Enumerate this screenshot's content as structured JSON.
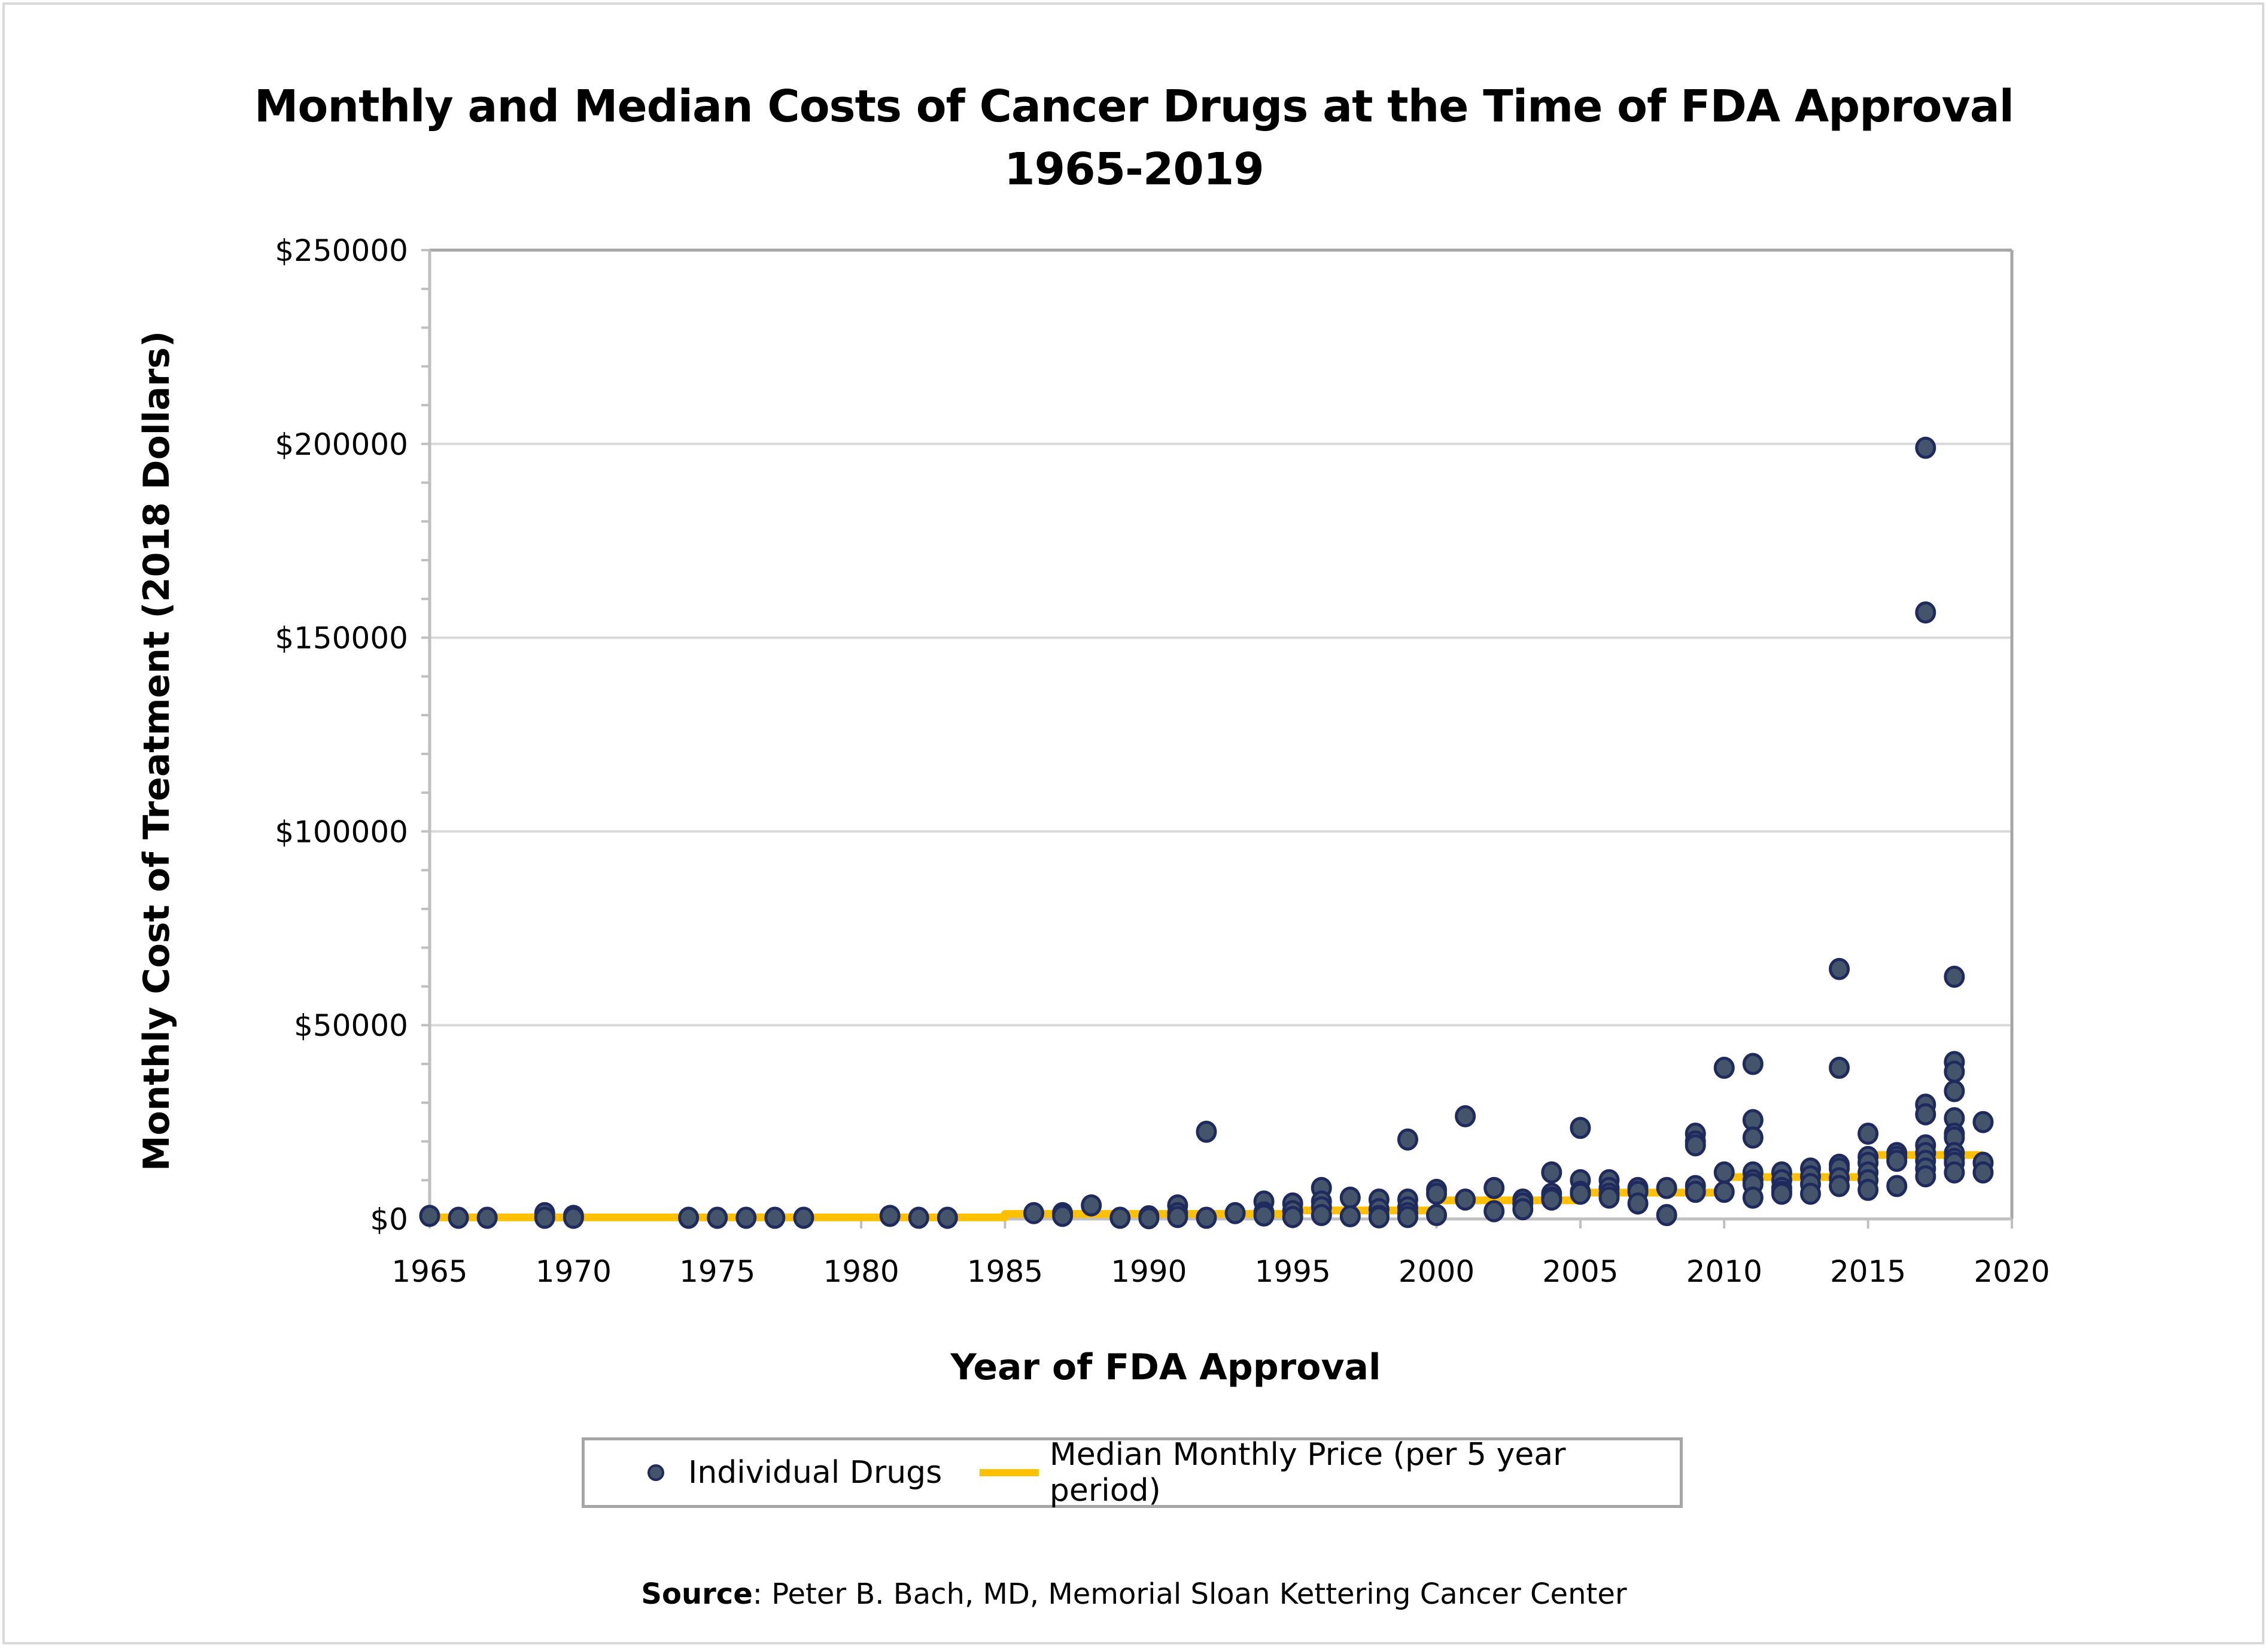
{
  "chart_data": {
    "type": "scatter",
    "title": "Monthly and Median Costs of Cancer Drugs at the Time of FDA Approval",
    "subtitle": "1965-2019",
    "xlabel": "Year of FDA Approval",
    "ylabel": "Monthly Cost of Treatment (2018 Dollars)",
    "xlim": [
      1965,
      2020
    ],
    "ylim": [
      0,
      250000
    ],
    "x_ticks": [
      "1965",
      "1970",
      "1975",
      "1980",
      "1985",
      "1990",
      "1995",
      "2000",
      "2005",
      "2010",
      "2015",
      "2020"
    ],
    "y_ticks": [
      "$0",
      "$50000",
      "$100000",
      "$150000",
      "$200000",
      "$250000"
    ],
    "y_tick_values": [
      0,
      50000,
      100000,
      150000,
      200000,
      250000
    ],
    "y_minor_step": 10000,
    "grid": true,
    "legend_position": "bottom",
    "colors": {
      "points_fill": "#44546a",
      "points_stroke": "#1f2a5e",
      "median": "#ffc000",
      "grid": "#d9d9d9",
      "axis": "#bfbfbf"
    },
    "series": [
      {
        "name": "Individual Drugs",
        "type": "scatter",
        "points": [
          [
            1965,
            800
          ],
          [
            1966,
            300
          ],
          [
            1967,
            300
          ],
          [
            1969,
            1500
          ],
          [
            1969,
            300
          ],
          [
            1970,
            800
          ],
          [
            1970,
            300
          ],
          [
            1974,
            300
          ],
          [
            1975,
            300
          ],
          [
            1976,
            300
          ],
          [
            1977,
            300
          ],
          [
            1978,
            300
          ],
          [
            1981,
            800
          ],
          [
            1982,
            300
          ],
          [
            1983,
            300
          ],
          [
            1986,
            1500
          ],
          [
            1987,
            1500
          ],
          [
            1987,
            800
          ],
          [
            1988,
            3500
          ],
          [
            1989,
            300
          ],
          [
            1990,
            700
          ],
          [
            1990,
            200
          ],
          [
            1991,
            3500
          ],
          [
            1991,
            1500
          ],
          [
            1991,
            500
          ],
          [
            1992,
            22500
          ],
          [
            1992,
            300
          ],
          [
            1993,
            1500
          ],
          [
            1994,
            4500
          ],
          [
            1994,
            1700
          ],
          [
            1994,
            900
          ],
          [
            1995,
            4000
          ],
          [
            1995,
            2000
          ],
          [
            1995,
            500
          ],
          [
            1996,
            8000
          ],
          [
            1996,
            4500
          ],
          [
            1996,
            3000
          ],
          [
            1996,
            1000
          ],
          [
            1997,
            5500
          ],
          [
            1997,
            700
          ],
          [
            1998,
            5000
          ],
          [
            1998,
            2500
          ],
          [
            1998,
            800
          ],
          [
            1998,
            400
          ],
          [
            1999,
            20500
          ],
          [
            1999,
            5000
          ],
          [
            1999,
            3000
          ],
          [
            1999,
            1500
          ],
          [
            1999,
            500
          ],
          [
            2000,
            7500
          ],
          [
            2000,
            6500
          ],
          [
            2000,
            1000
          ],
          [
            2001,
            26500
          ],
          [
            2001,
            5000
          ],
          [
            2002,
            8000
          ],
          [
            2002,
            2000
          ],
          [
            2003,
            5000
          ],
          [
            2003,
            4000
          ],
          [
            2003,
            2500
          ],
          [
            2004,
            12000
          ],
          [
            2004,
            6500
          ],
          [
            2004,
            5500
          ],
          [
            2004,
            5000
          ],
          [
            2005,
            23500
          ],
          [
            2005,
            10000
          ],
          [
            2005,
            7000
          ],
          [
            2005,
            6500
          ],
          [
            2006,
            10000
          ],
          [
            2006,
            8000
          ],
          [
            2006,
            6500
          ],
          [
            2006,
            5500
          ],
          [
            2007,
            8000
          ],
          [
            2007,
            7000
          ],
          [
            2007,
            4000
          ],
          [
            2008,
            8000
          ],
          [
            2008,
            1000
          ],
          [
            2009,
            22000
          ],
          [
            2009,
            20000
          ],
          [
            2009,
            19000
          ],
          [
            2009,
            8500
          ],
          [
            2009,
            7000
          ],
          [
            2010,
            39000
          ],
          [
            2010,
            12000
          ],
          [
            2010,
            7000
          ],
          [
            2011,
            40000
          ],
          [
            2011,
            25500
          ],
          [
            2011,
            21000
          ],
          [
            2011,
            12000
          ],
          [
            2011,
            10000
          ],
          [
            2011,
            9000
          ],
          [
            2011,
            5500
          ],
          [
            2012,
            12000
          ],
          [
            2012,
            10000
          ],
          [
            2012,
            8000
          ],
          [
            2012,
            7000
          ],
          [
            2012,
            6500
          ],
          [
            2013,
            13000
          ],
          [
            2013,
            11000
          ],
          [
            2013,
            9000
          ],
          [
            2013,
            6500
          ],
          [
            2014,
            64500
          ],
          [
            2014,
            39000
          ],
          [
            2014,
            14000
          ],
          [
            2014,
            13000
          ],
          [
            2014,
            10500
          ],
          [
            2014,
            8500
          ],
          [
            2015,
            22000
          ],
          [
            2015,
            16000
          ],
          [
            2015,
            14500
          ],
          [
            2015,
            12000
          ],
          [
            2015,
            10000
          ],
          [
            2015,
            7500
          ],
          [
            2016,
            17000
          ],
          [
            2016,
            16000
          ],
          [
            2016,
            15000
          ],
          [
            2016,
            8500
          ],
          [
            2017,
            199000
          ],
          [
            2017,
            156500
          ],
          [
            2017,
            29500
          ],
          [
            2017,
            27000
          ],
          [
            2017,
            19000
          ],
          [
            2017,
            17000
          ],
          [
            2017,
            15000
          ],
          [
            2017,
            13000
          ],
          [
            2017,
            11000
          ],
          [
            2018,
            62500
          ],
          [
            2018,
            40500
          ],
          [
            2018,
            38000
          ],
          [
            2018,
            33000
          ],
          [
            2018,
            26000
          ],
          [
            2018,
            22000
          ],
          [
            2018,
            21000
          ],
          [
            2018,
            17000
          ],
          [
            2018,
            15500
          ],
          [
            2018,
            14500
          ],
          [
            2018,
            12000
          ],
          [
            2019,
            25000
          ],
          [
            2019,
            14500
          ],
          [
            2019,
            12000
          ]
        ]
      },
      {
        "name": "Median Monthly Price (per 5 year period)",
        "type": "step-line",
        "segments": [
          {
            "from": 1965,
            "to": 1985,
            "value": 400
          },
          {
            "from": 1985,
            "to": 1995,
            "value": 1300
          },
          {
            "from": 1995,
            "to": 2000,
            "value": 2200
          },
          {
            "from": 2000,
            "to": 2005,
            "value": 4800
          },
          {
            "from": 2005,
            "to": 2010,
            "value": 6800
          },
          {
            "from": 2010,
            "to": 2015,
            "value": 10800
          },
          {
            "from": 2015,
            "to": 2019,
            "value": 16500
          }
        ]
      }
    ]
  },
  "legend": {
    "items": [
      {
        "label": "Individual Drugs",
        "marker": "circle"
      },
      {
        "label": "Median Monthly Price (per 5 year period)",
        "marker": "line"
      }
    ]
  },
  "source": {
    "prefix": "Source",
    "text": ": Peter B. Bach, MD, Memorial Sloan Kettering Cancer Center"
  }
}
